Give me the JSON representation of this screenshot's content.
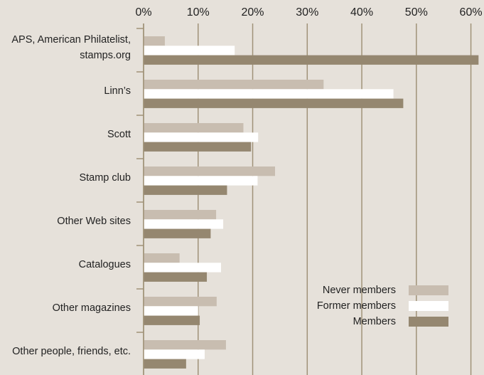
{
  "chart_data": {
    "type": "bar",
    "orientation": "horizontal",
    "categories": [
      "APS, American Philatelist, stamps.org",
      "Linn’s",
      "Scott",
      "Stamp club",
      "Other Web sites",
      "Catalogues",
      "Other magazines",
      "Other people, friends, etc."
    ],
    "series": [
      {
        "name": "Never members",
        "color": "#c8bdb0",
        "values": [
          3.9,
          33,
          18.3,
          24.1,
          13.3,
          6.6,
          13.4,
          15.1
        ]
      },
      {
        "name": "Former members",
        "color": "#ffffff",
        "values": [
          16.7,
          45.8,
          21,
          20.9,
          14.6,
          14.2,
          10,
          11.2
        ]
      },
      {
        "name": "Members",
        "color": "#958770",
        "values": [
          61.4,
          47.6,
          19.7,
          15.3,
          12.3,
          11.6,
          10.3,
          7.8
        ]
      }
    ],
    "xlim": [
      0,
      62.4
    ],
    "xticks": [
      {
        "value": 0,
        "label": "0%"
      },
      {
        "value": 10,
        "label": "10%"
      },
      {
        "value": 20,
        "label": "20%"
      },
      {
        "value": 30,
        "label": "30%"
      },
      {
        "value": 40,
        "label": "40%"
      },
      {
        "value": 50,
        "label": "50%"
      },
      {
        "value": 60,
        "label": "60%"
      }
    ],
    "grid": true,
    "legend": "lower right"
  }
}
